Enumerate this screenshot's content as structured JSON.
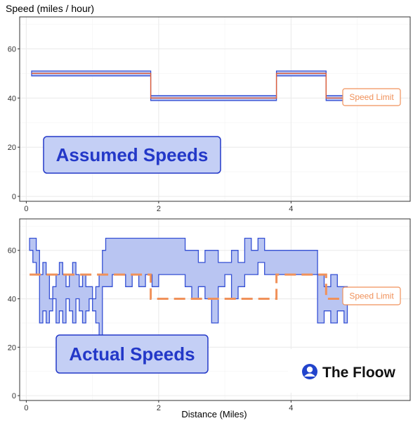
{
  "title": "Speed (miles / hour)",
  "xlabel": "Distance (Miles)",
  "brand": {
    "name": "The Floow",
    "icon": "floow-logo-icon"
  },
  "colors": {
    "band_fill": "#b9c5f2",
    "band_stroke": "#3550d4",
    "limit": "#f0915a",
    "label_text": "#2338c8",
    "grid": "#ebebeb",
    "panel_border": "#333333"
  },
  "chart_data": [
    {
      "type": "area",
      "panel": "top",
      "label": "Assumed Speeds",
      "limit_label": "Speed Limit",
      "xlim": [
        -0.1,
        5.8
      ],
      "ylim": [
        -2,
        73
      ],
      "x_ticks": [
        0,
        2,
        4
      ],
      "y_ticks": [
        0,
        20,
        40,
        60
      ],
      "band": {
        "x": [
          0.08,
          1.88,
          1.88,
          3.78,
          3.78,
          4.53,
          4.53,
          4.85
        ],
        "low": [
          49,
          49,
          39,
          39,
          49,
          49,
          39,
          39
        ],
        "high": [
          51,
          51,
          41,
          41,
          51,
          51,
          41,
          41
        ]
      },
      "speed_limit": {
        "x": [
          0.08,
          1.88,
          1.88,
          3.78,
          3.78,
          4.53,
          4.53,
          4.85
        ],
        "y": [
          50,
          50,
          40,
          40,
          50,
          50,
          40,
          40
        ]
      }
    },
    {
      "type": "area",
      "panel": "bottom",
      "label": "Actual Speeds",
      "limit_label": "Speed Limit",
      "xlim": [
        -0.1,
        5.8
      ],
      "ylim": [
        -2,
        73
      ],
      "x_ticks": [
        0,
        2,
        4
      ],
      "y_ticks": [
        0,
        20,
        40,
        60
      ],
      "band": {
        "x": [
          0.05,
          0.1,
          0.15,
          0.2,
          0.25,
          0.3,
          0.35,
          0.4,
          0.45,
          0.5,
          0.55,
          0.6,
          0.65,
          0.7,
          0.75,
          0.8,
          0.85,
          0.9,
          0.95,
          1.0,
          1.05,
          1.1,
          1.15,
          1.2,
          1.3,
          1.4,
          1.5,
          1.6,
          1.7,
          1.8,
          1.9,
          2.0,
          2.1,
          2.2,
          2.3,
          2.4,
          2.5,
          2.6,
          2.7,
          2.8,
          2.9,
          3.0,
          3.1,
          3.2,
          3.3,
          3.4,
          3.5,
          3.6,
          3.7,
          3.8,
          3.9,
          4.0,
          4.1,
          4.2,
          4.3,
          4.4,
          4.5,
          4.6,
          4.7,
          4.8,
          4.85
        ],
        "low": [
          60,
          55,
          50,
          30,
          35,
          30,
          35,
          40,
          30,
          35,
          30,
          40,
          35,
          30,
          40,
          35,
          30,
          35,
          40,
          35,
          30,
          25,
          45,
          45,
          50,
          50,
          45,
          50,
          45,
          50,
          45,
          50,
          50,
          50,
          50,
          45,
          40,
          45,
          40,
          30,
          45,
          50,
          40,
          45,
          50,
          50,
          55,
          50,
          50,
          50,
          50,
          50,
          50,
          50,
          50,
          30,
          35,
          30,
          35,
          30,
          30
        ],
        "high": [
          65,
          65,
          60,
          50,
          55,
          50,
          40,
          45,
          50,
          55,
          50,
          45,
          50,
          55,
          50,
          45,
          50,
          45,
          45,
          40,
          45,
          50,
          60,
          65,
          65,
          65,
          65,
          65,
          65,
          65,
          65,
          65,
          65,
          65,
          65,
          60,
          60,
          55,
          60,
          60,
          55,
          55,
          60,
          55,
          65,
          60,
          65,
          60,
          60,
          60,
          60,
          60,
          60,
          60,
          60,
          50,
          45,
          50,
          45,
          45,
          40
        ]
      },
      "speed_limit": {
        "x": [
          0.05,
          1.88,
          1.88,
          3.78,
          3.78,
          4.53,
          4.53,
          4.85
        ],
        "y": [
          50,
          50,
          40,
          40,
          50,
          50,
          40,
          40
        ]
      }
    }
  ]
}
